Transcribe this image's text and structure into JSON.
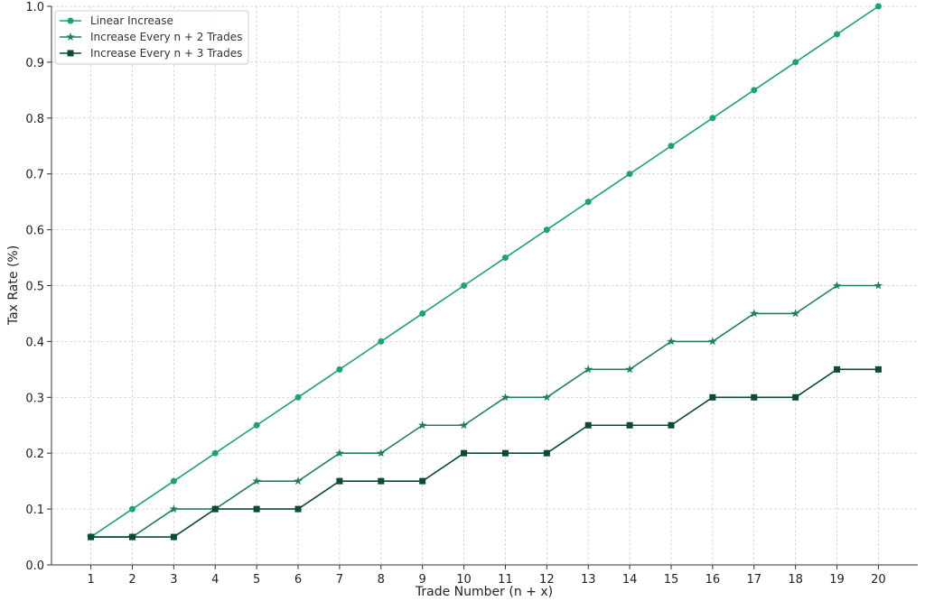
{
  "chart_data": {
    "type": "line",
    "title": "",
    "xlabel": "Trade Number (n + x)",
    "ylabel": "Tax Rate (%)",
    "x": [
      1,
      2,
      3,
      4,
      5,
      6,
      7,
      8,
      9,
      10,
      11,
      12,
      13,
      14,
      15,
      16,
      17,
      18,
      19,
      20
    ],
    "xlim": [
      0.05,
      20.95
    ],
    "ylim": [
      0,
      1.0
    ],
    "yticks": [
      "0.0",
      "0.1",
      "0.2",
      "0.3",
      "0.4",
      "0.5",
      "0.6",
      "0.7",
      "0.8",
      "0.9",
      "1.0"
    ],
    "xticks": [
      "1",
      "2",
      "3",
      "4",
      "5",
      "6",
      "7",
      "8",
      "9",
      "10",
      "11",
      "12",
      "13",
      "14",
      "15",
      "16",
      "17",
      "18",
      "19",
      "20"
    ],
    "grid": true,
    "legend_position": "top-left",
    "series": [
      {
        "name": "Linear Increase",
        "marker": "circle",
        "color": "#1ba27a",
        "values": [
          0.05,
          0.1,
          0.15,
          0.2,
          0.25,
          0.3,
          0.35,
          0.4,
          0.45,
          0.5,
          0.55,
          0.6,
          0.65,
          0.7,
          0.75,
          0.8,
          0.85,
          0.9,
          0.95,
          1.0
        ]
      },
      {
        "name": "Increase Every n + 2 Trades",
        "marker": "star",
        "color": "#1f8060",
        "values": [
          0.05,
          0.05,
          0.1,
          0.1,
          0.15,
          0.15,
          0.2,
          0.2,
          0.25,
          0.25,
          0.3,
          0.3,
          0.35,
          0.35,
          0.4,
          0.4,
          0.45,
          0.45,
          0.5,
          0.5
        ]
      },
      {
        "name": "Increase Every n + 3 Trades",
        "marker": "square",
        "color": "#0b4a33",
        "values": [
          0.05,
          0.05,
          0.05,
          0.1,
          0.1,
          0.1,
          0.15,
          0.15,
          0.15,
          0.2,
          0.2,
          0.2,
          0.25,
          0.25,
          0.25,
          0.3,
          0.3,
          0.3,
          0.35,
          0.35
        ]
      }
    ]
  }
}
